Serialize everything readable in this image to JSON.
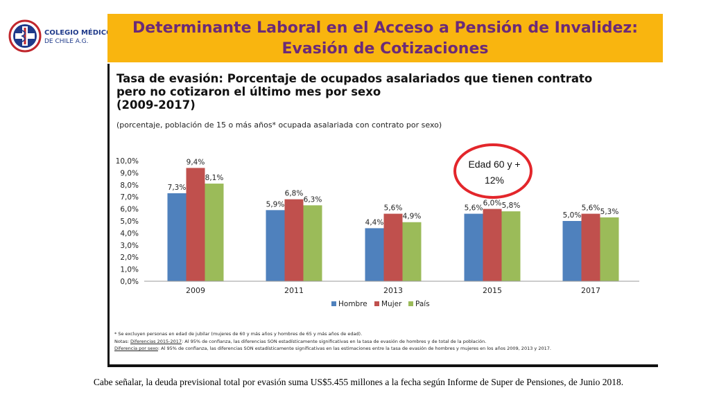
{
  "logo": {
    "line1": "COLEGIO MÉDICO",
    "line2": "DE CHILE A.G."
  },
  "banner": {
    "title_line1": "Determinante Laboral en el Acceso a Pensión de Invalidez:",
    "title_line2": "Evasión de Cotizaciones"
  },
  "chart_heading": {
    "line1": "Tasa de evasión: Porcentaje de ocupados asalariados que tienen contrato",
    "line2": "pero no cotizaron el último mes por sexo",
    "line3": "(2009-2017)",
    "subtitle": "(porcentaje, población de 15 o más años* ocupada asalariada con contrato por sexo)"
  },
  "callout": {
    "line1": "Edad 60 y +",
    "line2": "12%"
  },
  "colors": {
    "Hombre": "#4f81bd",
    "Mujer": "#c0504d",
    "País": "#9bbb59",
    "callout": "#e3262b",
    "banner": "#f9b50f",
    "title": "#6b2a78"
  },
  "chart_data": {
    "type": "bar",
    "categories": [
      "2009",
      "2011",
      "2013",
      "2015",
      "2017"
    ],
    "series": [
      {
        "name": "Hombre",
        "values": [
          7.3,
          5.9,
          4.4,
          5.6,
          5.0
        ],
        "labels": [
          "7,3%",
          "5,9%",
          "4,4%",
          "5,6%",
          "5,0%"
        ]
      },
      {
        "name": "Mujer",
        "values": [
          9.4,
          6.8,
          5.6,
          6.0,
          5.6
        ],
        "labels": [
          "9,4%",
          "6,8%",
          "5,6%",
          "6,0%",
          "5,6%"
        ]
      },
      {
        "name": "País",
        "values": [
          8.1,
          6.3,
          4.9,
          5.8,
          5.3
        ],
        "labels": [
          "8,1%",
          "6,3%",
          "4,9%",
          "5,8%",
          "5,3%"
        ]
      }
    ],
    "yticks": [
      "0,0%",
      "1,0%",
      "2,0%",
      "3,0%",
      "4,0%",
      "5,0%",
      "6,0%",
      "7,0%",
      "8,0%",
      "9,0%",
      "10,0%"
    ],
    "ylim": [
      0,
      10
    ],
    "grid": false,
    "legend": "bottom"
  },
  "footnotes": {
    "note1": "* Se excluyen personas en edad de jubilar (mujeres de 60 y más años y hombres de 65 y más años de edad).",
    "note2_prefix": "Notas: ",
    "note2_label": "Diferencias 2015-2017",
    "note2_text": ": Al 95% de confianza, las diferencias SON estadísticamente significativas en la tasa de evasión de hombres y de total de la población.",
    "note3_label": "Diferencia por sexo",
    "note3_text": ": Al 95% de confianza, las diferencias SON estadísticamente significativas en las estimaciones entre la tasa de evasión de hombres y mujeres en los años 2009, 2013 y 2017."
  },
  "bottom_text": "Cabe señalar, la deuda previsional total por evasión suma US$5.455 millones a la fecha según Informe de Super de Pensiones, de Junio 2018."
}
